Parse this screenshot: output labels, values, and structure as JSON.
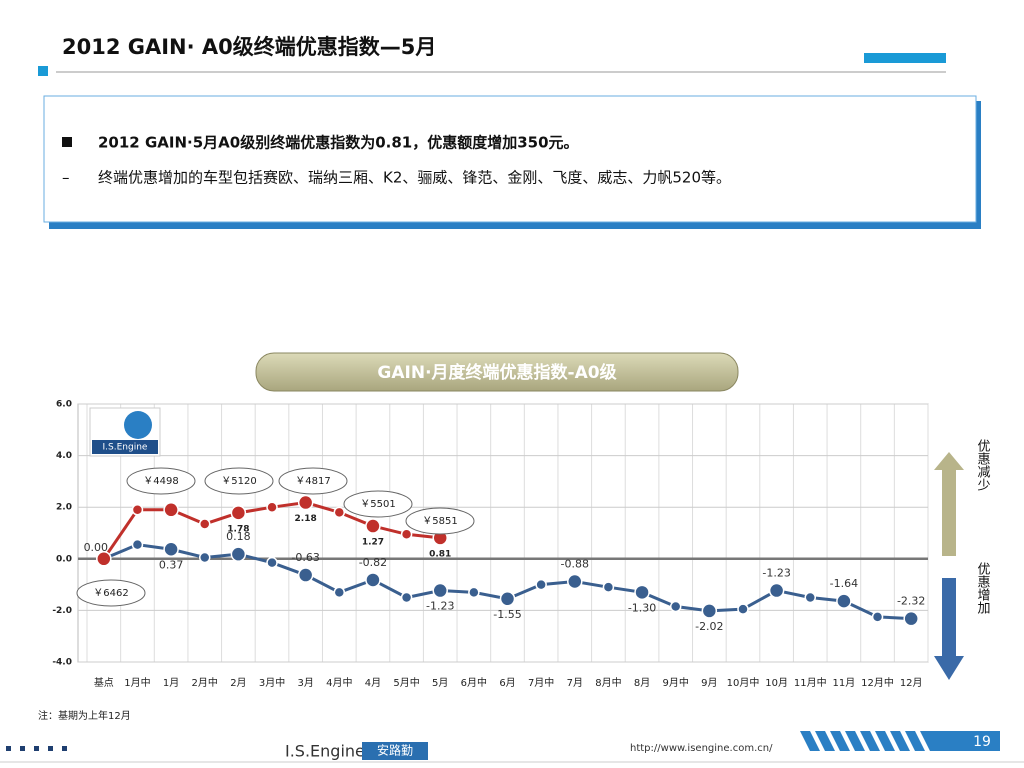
{
  "header": {
    "title": "2012 GAIN· A0级终端优惠指数—5月"
  },
  "bullets": [
    "2012 GAIN·5月A0级别终端优惠指数为0.81，优惠额度增加350元。",
    "终端优惠增加的车型包括赛欧、瑞纳三厢、K2、骊威、锋范、金刚、飞度、威志、力帆520等。"
  ],
  "chart_data": {
    "type": "line",
    "title": "GAIN·月度终端优惠指数-A0级",
    "categories": [
      "基点",
      "1月中",
      "1月",
      "2月中",
      "2月",
      "3月中",
      "3月",
      "4月中",
      "4月",
      "5月中",
      "5月",
      "6月中",
      "6月",
      "7月中",
      "7月",
      "8月中",
      "8月",
      "9月中",
      "9月",
      "10月中",
      "10月",
      "11月中",
      "11月",
      "12月中",
      "12月"
    ],
    "series": [
      {
        "color": "#c0302b",
        "values": [
          0,
          1.9,
          1.9,
          1.35,
          1.78,
          2.0,
          2.18,
          1.8,
          1.27,
          0.95,
          0.81,
          null,
          null,
          null,
          null,
          null,
          null,
          null,
          null,
          null,
          null,
          null,
          null,
          null,
          null
        ],
        "value_labels": [
          null,
          null,
          null,
          null,
          "1.78",
          null,
          "2.18",
          null,
          "1.27",
          null,
          "0.81",
          null,
          null,
          null,
          null,
          null,
          null,
          null,
          null,
          null,
          null,
          null,
          null,
          null,
          null
        ]
      },
      {
        "color": "#3a5f8f",
        "values": [
          0,
          0.55,
          0.37,
          0.05,
          0.18,
          -0.15,
          -0.63,
          -1.3,
          -0.82,
          -1.5,
          -1.23,
          -1.3,
          -1.55,
          -1.0,
          -0.88,
          -1.1,
          -1.3,
          -1.85,
          -2.02,
          -1.95,
          -1.23,
          -1.5,
          -1.64,
          -2.25,
          -2.32
        ],
        "value_labels": [
          "0.00",
          null,
          "0.37",
          null,
          "0.18",
          null,
          "-0.63",
          null,
          "-0.82",
          null,
          "-1.23",
          null,
          "-1.55",
          null,
          "-0.88",
          null,
          "-1.30",
          null,
          "-2.02",
          null,
          "-1.23",
          null,
          "-1.64",
          null,
          "-2.32"
        ]
      }
    ],
    "ylim": [
      -4,
      6
    ],
    "yticks": [
      {
        "value": -4,
        "label": "-4.0"
      },
      {
        "value": -2,
        "label": "-2.0"
      },
      {
        "value": 0,
        "label": "0.0"
      },
      {
        "value": 2,
        "label": "2.0"
      },
      {
        "value": 4,
        "label": "4.0"
      },
      {
        "value": 6,
        "label": "6.0"
      }
    ],
    "grid": true,
    "annotations": [
      "￥6462",
      "￥4498",
      "￥5120",
      "￥4817",
      "￥5501",
      "￥5851"
    ],
    "arrow_up": "优惠减少",
    "arrow_down": "优惠增加",
    "logo": "I.S.Engine"
  },
  "note": "注：基期为上年12月",
  "footer": {
    "brand": "I.S.Engine",
    "brand_cn": "安路勤",
    "url": "http://www.isengine.com.cn/",
    "page": "19"
  }
}
